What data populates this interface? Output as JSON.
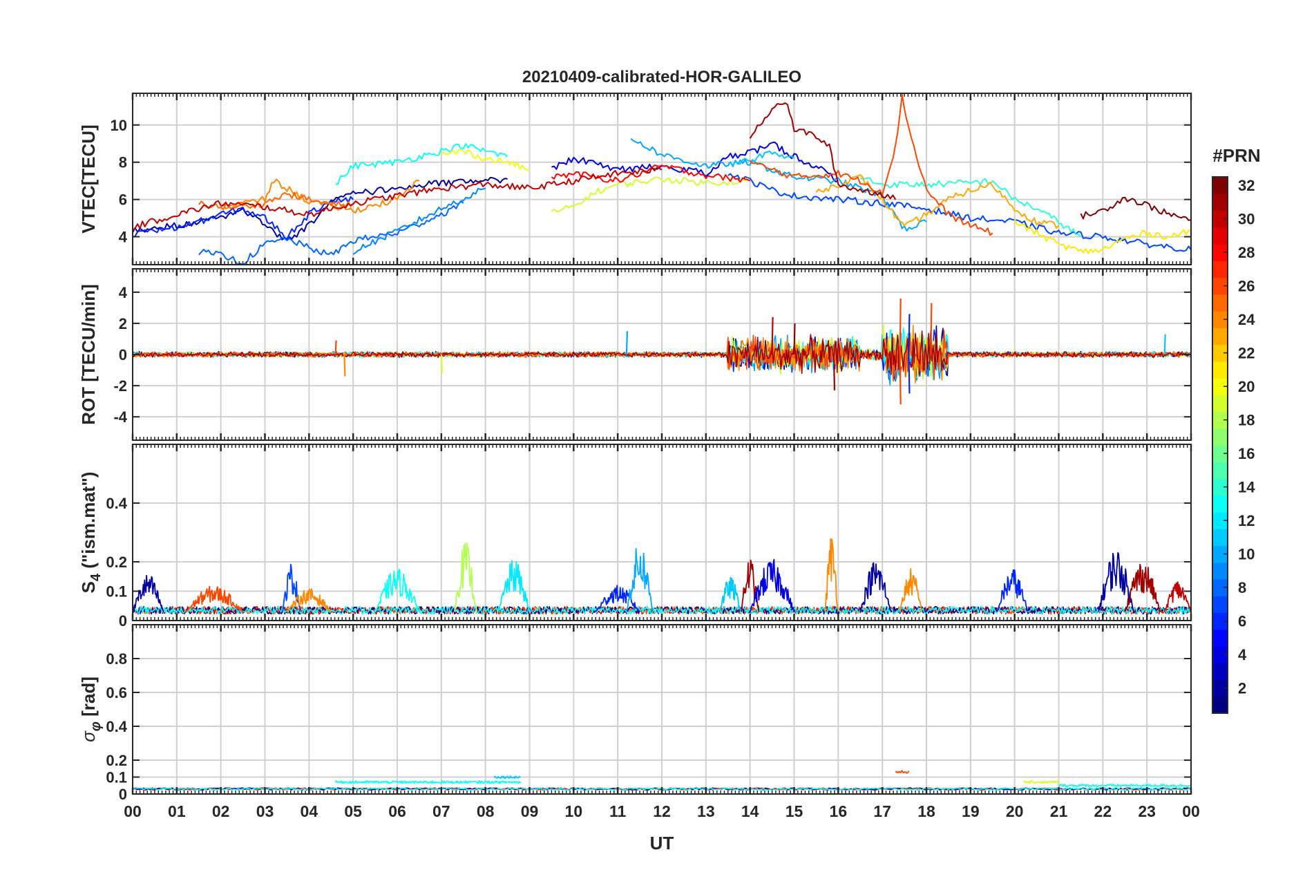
{
  "chart_data": {
    "type": "line",
    "title": "20210409-calibrated-HOR-GALILEO",
    "xlabel": "UT",
    "x_tick_labels": [
      "00",
      "01",
      "02",
      "03",
      "04",
      "05",
      "06",
      "07",
      "08",
      "09",
      "10",
      "11",
      "12",
      "13",
      "14",
      "15",
      "16",
      "17",
      "18",
      "19",
      "20",
      "21",
      "22",
      "23",
      "00"
    ],
    "xlim_hours": [
      0,
      24
    ],
    "colorbar": {
      "title": "#PRN",
      "range": [
        1,
        32
      ],
      "tick_labels": [
        "2",
        "4",
        "6",
        "8",
        "10",
        "12",
        "14",
        "16",
        "18",
        "20",
        "22",
        "24",
        "26",
        "28",
        "30",
        "32"
      ],
      "colormap": "jet"
    },
    "panels": [
      {
        "id": "vtec",
        "ylabel": "VTEC[TECU]",
        "ylim": [
          2.5,
          11.7
        ],
        "y_ticks": [
          4,
          6,
          8,
          10
        ],
        "y_tick_labels": [
          "4",
          "6",
          "8",
          "10"
        ],
        "series": [
          {
            "prn": 2,
            "x": [
              0.0,
              1.0,
              2.0,
              2.5,
              3.0,
              3.5,
              4.0,
              4.5,
              5.0,
              6.0,
              7.0,
              8.0,
              8.5
            ],
            "y": [
              4.3,
              4.6,
              5.0,
              5.5,
              4.6,
              3.8,
              4.6,
              6.0,
              6.3,
              6.6,
              6.9,
              7.0,
              7.1
            ]
          },
          {
            "prn": 4,
            "x": [
              9.5,
              10.0,
              11.0,
              12.0,
              13.0,
              13.5,
              14.0,
              14.5,
              15.0,
              15.5,
              16.0
            ],
            "y": [
              7.6,
              8.2,
              7.6,
              7.8,
              7.4,
              8.3,
              8.5,
              9.0,
              8.3,
              7.8,
              7.0
            ]
          },
          {
            "prn": 6,
            "x": [
              0.0,
              0.5,
              1.0,
              1.5,
              2.0,
              2.5,
              3.0,
              3.5,
              4.0,
              4.5,
              5.0
            ],
            "y": [
              4.1,
              4.3,
              4.5,
              4.8,
              5.2,
              5.5,
              5.0,
              4.0,
              5.2,
              6.0,
              6.0
            ]
          },
          {
            "prn": 7,
            "x": [
              13.5,
              14.0,
              14.5,
              15.0,
              16.0,
              17.0,
              18.0,
              19.0,
              20.0,
              21.0,
              22.0,
              23.0,
              24.0
            ],
            "y": [
              7.4,
              7.0,
              6.5,
              6.2,
              6.0,
              5.8,
              5.5,
              5.0,
              4.8,
              4.2,
              4.0,
              3.6,
              3.3
            ]
          },
          {
            "prn": 8,
            "x": [
              1.5,
              2.0,
              2.5,
              3.0,
              3.5,
              4.0,
              4.5,
              5.0,
              6.0,
              7.0,
              7.5
            ],
            "y": [
              3.2,
              3.0,
              2.6,
              3.6,
              3.9,
              3.4,
              3.0,
              3.8,
              4.2,
              5.2,
              5.8
            ]
          },
          {
            "prn": 9,
            "x": [
              5.0,
              6.0,
              7.0,
              8.0
            ],
            "y": [
              3.2,
              4.3,
              5.5,
              6.6
            ]
          },
          {
            "prn": 10,
            "x": [
              11.3,
              12.0,
              13.0,
              14.0,
              15.0,
              16.0,
              17.0,
              17.5,
              18.0
            ],
            "y": [
              9.3,
              8.4,
              7.8,
              8.0,
              7.2,
              7.0,
              6.2,
              4.4,
              4.8
            ]
          },
          {
            "prn": 11,
            "x": [
              13.5,
              14.0,
              14.5,
              15.0
            ],
            "y": [
              7.8,
              8.1,
              8.6,
              8.2
            ]
          },
          {
            "prn": 13,
            "x": [
              4.6,
              5.0,
              6.0,
              7.0,
              7.5,
              8.0,
              8.5
            ],
            "y": [
              6.8,
              7.8,
              8.0,
              8.6,
              8.9,
              8.6,
              8.3
            ]
          },
          {
            "prn": 14,
            "x": [
              16.5,
              17.0,
              18.0,
              19.0,
              19.5,
              20.0,
              20.5,
              21.0,
              21.5
            ],
            "y": [
              7.2,
              6.8,
              6.8,
              6.9,
              7.0,
              6.0,
              5.5,
              4.8,
              4.0
            ]
          },
          {
            "prn": 19,
            "x": [
              9.5,
              10.0,
              10.5,
              11.0,
              12.0,
              13.0,
              14.0
            ],
            "y": [
              5.3,
              5.6,
              6.4,
              6.8,
              7.1,
              6.9,
              7.0
            ]
          },
          {
            "prn": 20,
            "x": [
              7.0,
              7.5,
              8.0,
              8.5,
              9.0
            ],
            "y": [
              8.4,
              8.6,
              8.2,
              8.0,
              7.6
            ]
          },
          {
            "prn": 21,
            "x": [
              20.0,
              20.5,
              21.0,
              21.5,
              22.0,
              22.5,
              23.0,
              23.5,
              24.0
            ],
            "y": [
              4.8,
              4.2,
              3.6,
              3.2,
              3.3,
              3.9,
              4.2,
              4.0,
              4.3
            ]
          },
          {
            "prn": 23,
            "x": [
              15.5,
              16.0,
              16.5,
              17.0,
              17.5,
              18.0,
              18.5,
              19.0,
              19.5,
              20.0,
              20.5,
              21.0
            ],
            "y": [
              6.4,
              6.8,
              7.2,
              6.0,
              4.5,
              5.2,
              6.0,
              6.5,
              6.8,
              5.5,
              4.8,
              4.6
            ]
          },
          {
            "prn": 24,
            "x": [
              2.0,
              3.0,
              3.2,
              3.5,
              4.0,
              5.0,
              6.0,
              6.5
            ],
            "y": [
              5.6,
              6.0,
              7.0,
              6.6,
              5.9,
              5.4,
              6.0,
              7.0
            ]
          },
          {
            "prn": 25,
            "x": [
              1.5,
              2.0,
              2.5,
              3.0,
              3.5,
              4.0,
              4.5,
              5.0
            ],
            "y": [
              5.8,
              5.6,
              5.6,
              5.8,
              6.3,
              6.0,
              5.7,
              5.8
            ]
          },
          {
            "prn": 26,
            "x": [
              14.0,
              15.0,
              16.0,
              16.5,
              17.0,
              17.3,
              17.45,
              17.6,
              18.0,
              18.5,
              19.0,
              19.5
            ],
            "y": [
              8.0,
              7.2,
              7.4,
              7.0,
              6.4,
              8.8,
              11.6,
              9.8,
              6.5,
              5.2,
              4.6,
              4.2
            ]
          },
          {
            "prn": 28,
            "x": [
              9.5,
              10.0,
              11.0,
              12.0,
              13.0,
              14.0
            ],
            "y": [
              7.2,
              7.4,
              7.0,
              7.8,
              7.3,
              7.0
            ]
          },
          {
            "prn": 30,
            "x": [
              0.0,
              1.0,
              2.0,
              3.0,
              4.0,
              5.0,
              6.0,
              7.0,
              8.0,
              9.0,
              10.0,
              11.0,
              12.0
            ],
            "y": [
              4.5,
              5.2,
              5.8,
              5.6,
              5.2,
              5.8,
              6.2,
              6.6,
              6.8,
              6.6,
              7.0,
              7.4,
              7.6
            ]
          },
          {
            "prn": 31,
            "x": [
              14.0,
              14.5,
              14.8,
              15.0,
              15.5,
              15.8,
              16.0,
              16.5,
              17.0,
              17.3
            ],
            "y": [
              9.4,
              10.9,
              11.3,
              9.8,
              9.4,
              8.8,
              6.8,
              6.5,
              6.3,
              6.0
            ]
          },
          {
            "prn": 32,
            "x": [
              21.5,
              22.0,
              22.5,
              23.0,
              23.5,
              24.0
            ],
            "y": [
              5.1,
              5.4,
              6.1,
              5.7,
              5.2,
              4.9
            ]
          }
        ]
      },
      {
        "id": "rot",
        "ylabel": "ROT [TECU/min]",
        "ylim": [
          -5.5,
          5.5
        ],
        "y_ticks": [
          -4,
          -2,
          0,
          2,
          4
        ],
        "y_tick_labels": [
          "-4",
          "-2",
          "0",
          "2",
          "4"
        ],
        "noise_regions": [
          {
            "from": 0.0,
            "to": 13.5,
            "amplitude": 0.2
          },
          {
            "from": 13.5,
            "to": 16.5,
            "amplitude": 1.3
          },
          {
            "from": 16.5,
            "to": 17.0,
            "amplitude": 0.4
          },
          {
            "from": 17.0,
            "to": 18.5,
            "amplitude": 2.0
          },
          {
            "from": 18.5,
            "to": 24.0,
            "amplitude": 0.2
          }
        ],
        "spikes": [
          {
            "prn": 24,
            "x": 4.8,
            "y": -1.4
          },
          {
            "prn": 26,
            "x": 4.6,
            "y": 0.9
          },
          {
            "prn": 10,
            "x": 11.2,
            "y": 1.5
          },
          {
            "prn": 19,
            "x": 7.0,
            "y": -1.2
          },
          {
            "prn": 30,
            "x": 14.5,
            "y": 2.4
          },
          {
            "prn": 31,
            "x": 15.0,
            "y": 2.0
          },
          {
            "prn": 31,
            "x": 15.9,
            "y": -2.3
          },
          {
            "prn": 26,
            "x": 17.4,
            "y": 3.6
          },
          {
            "prn": 26,
            "x": 17.4,
            "y": -3.2
          },
          {
            "prn": 6,
            "x": 17.6,
            "y": 2.6
          },
          {
            "prn": 6,
            "x": 17.6,
            "y": -2.5
          },
          {
            "prn": 26,
            "x": 18.1,
            "y": 3.3
          },
          {
            "prn": 11,
            "x": 23.4,
            "y": 1.3
          }
        ]
      },
      {
        "id": "s4",
        "ylabel": "S4 (\"ism.mat\")",
        "ylim": [
          0,
          0.6
        ],
        "y_ticks": [
          0,
          0.1,
          0.2,
          0.4
        ],
        "y_tick_labels": [
          "0",
          "0.1",
          "0.2",
          "0.4"
        ],
        "baseline": 0.03,
        "bursts": [
          {
            "prn": 2,
            "from": 0.0,
            "to": 0.7,
            "peak": 0.16
          },
          {
            "prn": 26,
            "from": 1.2,
            "to": 2.5,
            "peak": 0.12
          },
          {
            "prn": 7,
            "from": 3.4,
            "to": 3.8,
            "peak": 0.2
          },
          {
            "prn": 24,
            "from": 3.5,
            "to": 4.5,
            "peak": 0.11
          },
          {
            "prn": 13,
            "from": 5.5,
            "to": 6.5,
            "peak": 0.18
          },
          {
            "prn": 18,
            "from": 7.3,
            "to": 7.8,
            "peak": 0.27
          },
          {
            "prn": 12,
            "from": 8.3,
            "to": 9.0,
            "peak": 0.21
          },
          {
            "prn": 6,
            "from": 10.5,
            "to": 11.5,
            "peak": 0.12
          },
          {
            "prn": 10,
            "from": 11.2,
            "to": 11.8,
            "peak": 0.27
          },
          {
            "prn": 11,
            "from": 13.3,
            "to": 13.8,
            "peak": 0.15
          },
          {
            "prn": 31,
            "from": 13.8,
            "to": 14.2,
            "peak": 0.22
          },
          {
            "prn": 4,
            "from": 14.0,
            "to": 15.0,
            "peak": 0.21
          },
          {
            "prn": 24,
            "from": 15.7,
            "to": 16.0,
            "peak": 0.3
          },
          {
            "prn": 2,
            "from": 16.5,
            "to": 17.2,
            "peak": 0.21
          },
          {
            "prn": 24,
            "from": 17.4,
            "to": 17.9,
            "peak": 0.18
          },
          {
            "prn": 6,
            "from": 19.6,
            "to": 20.3,
            "peak": 0.18
          },
          {
            "prn": 2,
            "from": 21.9,
            "to": 22.7,
            "peak": 0.25
          },
          {
            "prn": 31,
            "from": 22.5,
            "to": 23.3,
            "peak": 0.21
          },
          {
            "prn": 30,
            "from": 23.4,
            "to": 24.0,
            "peak": 0.14
          }
        ]
      },
      {
        "id": "sigma_phi",
        "ylabel": "σφ [rad]",
        "ylim": [
          0,
          1.0
        ],
        "y_ticks": [
          0,
          0.1,
          0.2,
          0.4,
          0.6,
          0.8
        ],
        "y_tick_labels": [
          "0",
          "0.1",
          "0.2",
          "0.4",
          "0.6",
          "0.8"
        ],
        "baseline": 0.03,
        "bumps": [
          {
            "prn": 13,
            "from": 4.6,
            "to": 8.8,
            "level": 0.07
          },
          {
            "prn": 11,
            "from": 8.2,
            "to": 8.8,
            "level": 0.1
          },
          {
            "prn": 26,
            "from": 17.3,
            "to": 17.6,
            "level": 0.13
          },
          {
            "prn": 19,
            "from": 20.2,
            "to": 21.0,
            "level": 0.07
          },
          {
            "prn": 13,
            "from": 21.0,
            "to": 24.0,
            "level": 0.05
          }
        ]
      }
    ]
  }
}
